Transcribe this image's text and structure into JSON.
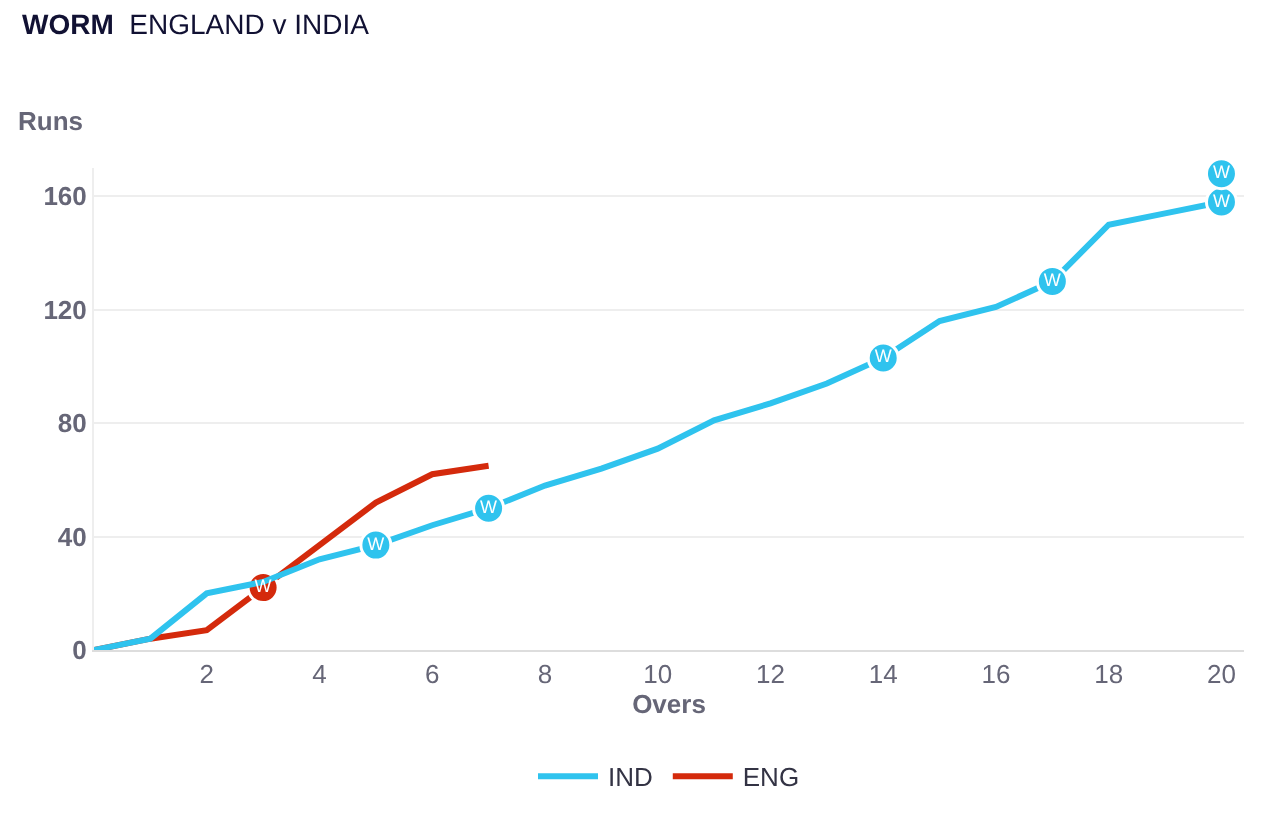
{
  "chart_data": {
    "type": "line",
    "title": "WORM",
    "subtitle": "ENGLAND v INDIA",
    "xlabel": "Overs",
    "ylabel": "Runs",
    "xlim": [
      0,
      20.4
    ],
    "xticks": [
      2,
      4,
      6,
      8,
      10,
      12,
      14,
      16,
      18,
      20
    ],
    "ylim": [
      0,
      170
    ],
    "yticks": [
      0,
      40,
      80,
      120,
      160
    ],
    "grid": "y",
    "legend": "bottom",
    "marker": "none",
    "line_style": "solid",
    "series": [
      {
        "name": "ENG",
        "color": "#d42a0c",
        "x": [
          0,
          1,
          2,
          3,
          4,
          5,
          6,
          7
        ],
        "values": [
          0,
          4,
          7,
          22,
          37,
          52,
          62,
          65
        ]
      },
      {
        "color": "#d42a0c",
        "type": "scatter",
        "marker": "circle",
        "x": [
          3
        ],
        "values": [
          22
        ],
        "value_labels": [
          "W"
        ]
      },
      {
        "name": "IND",
        "color": "#2fc3ee",
        "x": [
          0,
          1,
          2,
          3,
          4,
          5,
          6,
          7,
          8,
          9,
          10,
          11,
          12,
          13,
          14,
          15,
          16,
          17,
          18,
          19,
          20
        ],
        "values": [
          0,
          4,
          20,
          24,
          32,
          37,
          44,
          50,
          58,
          64,
          71,
          81,
          87,
          94,
          103,
          116,
          121,
          130,
          150,
          154,
          158
        ]
      },
      {
        "color": "#2fc3ee",
        "type": "scatter",
        "marker": "circle",
        "x": [
          5,
          7,
          14,
          17,
          20,
          20
        ],
        "values": [
          37,
          50,
          103,
          130,
          158,
          168
        ],
        "value_labels": [
          "W",
          "W",
          "W",
          "W",
          "W",
          "W"
        ]
      }
    ]
  }
}
